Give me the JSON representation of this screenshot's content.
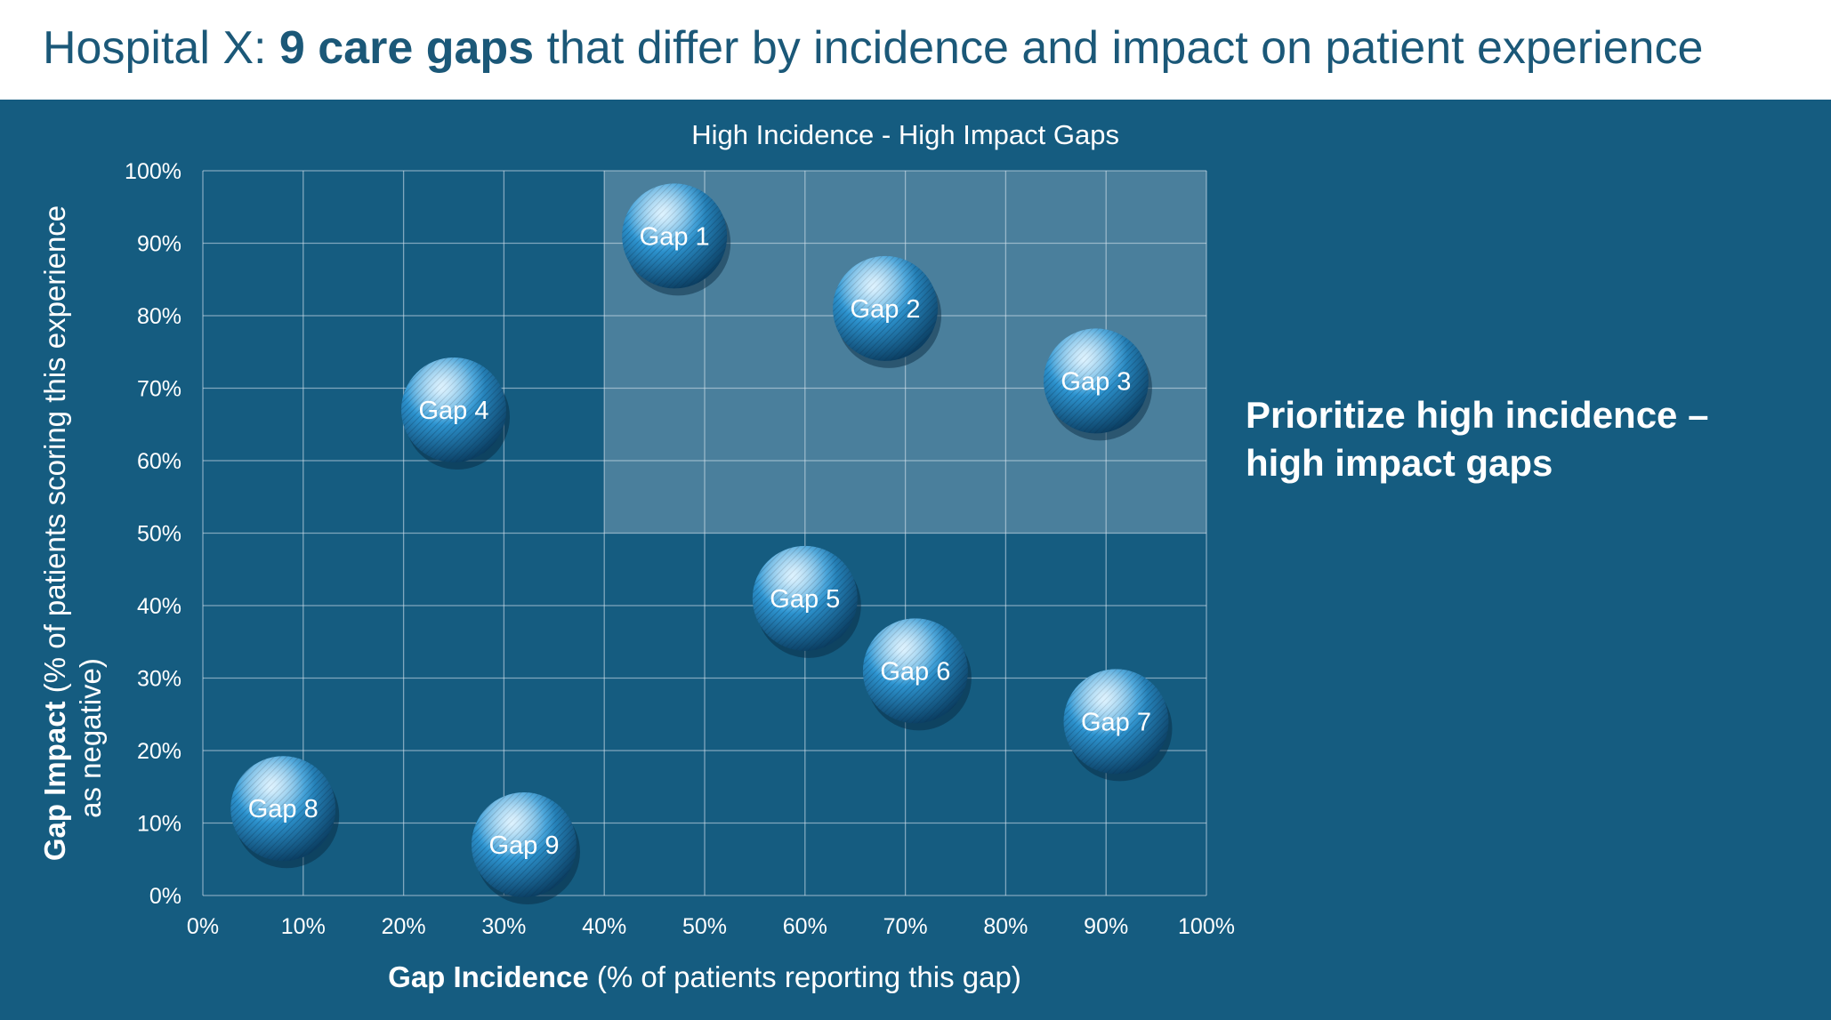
{
  "title": {
    "prefix": "Hospital X: ",
    "bold": "9 care gaps",
    "suffix": " that differ by incidence and impact on patient experience"
  },
  "side_note": "Prioritize high incidence – high impact gaps",
  "colors": {
    "panel": "#155c80",
    "highlight_region": "#5c8ba6",
    "bubble_light": "#bfe8ff",
    "bubble_mid": "#2e97d4",
    "bubble_dark": "#0b3f63"
  },
  "chart_data": {
    "type": "scatter",
    "region_label": "High Incidence - High Impact Gaps",
    "highlight_region": {
      "x": [
        40,
        100
      ],
      "y": [
        50,
        100
      ]
    },
    "xlabel_bold": "Gap Incidence",
    "xlabel_rest": " (% of patients reporting this gap)",
    "ylabel_bold": "Gap Impact",
    "ylabel_rest": " (% of patients scoring this experience",
    "ylabel_line2": "as negative)",
    "xlim": [
      0,
      100
    ],
    "ylim": [
      0,
      100
    ],
    "x_ticks": [
      "0%",
      "10%",
      "20%",
      "30%",
      "40%",
      "50%",
      "60%",
      "70%",
      "80%",
      "90%",
      "100%"
    ],
    "y_ticks": [
      "0%",
      "10%",
      "20%",
      "30%",
      "40%",
      "50%",
      "60%",
      "70%",
      "80%",
      "90%",
      "100%"
    ],
    "grid": true,
    "points": [
      {
        "label": "Gap 1",
        "x": 47,
        "y": 91
      },
      {
        "label": "Gap 2",
        "x": 68,
        "y": 81
      },
      {
        "label": "Gap 3",
        "x": 89,
        "y": 71
      },
      {
        "label": "Gap 4",
        "x": 25,
        "y": 67
      },
      {
        "label": "Gap 5",
        "x": 60,
        "y": 41
      },
      {
        "label": "Gap 6",
        "x": 71,
        "y": 31
      },
      {
        "label": "Gap 7",
        "x": 91,
        "y": 24
      },
      {
        "label": "Gap 8",
        "x": 8,
        "y": 12
      },
      {
        "label": "Gap 9",
        "x": 32,
        "y": 7
      }
    ]
  }
}
